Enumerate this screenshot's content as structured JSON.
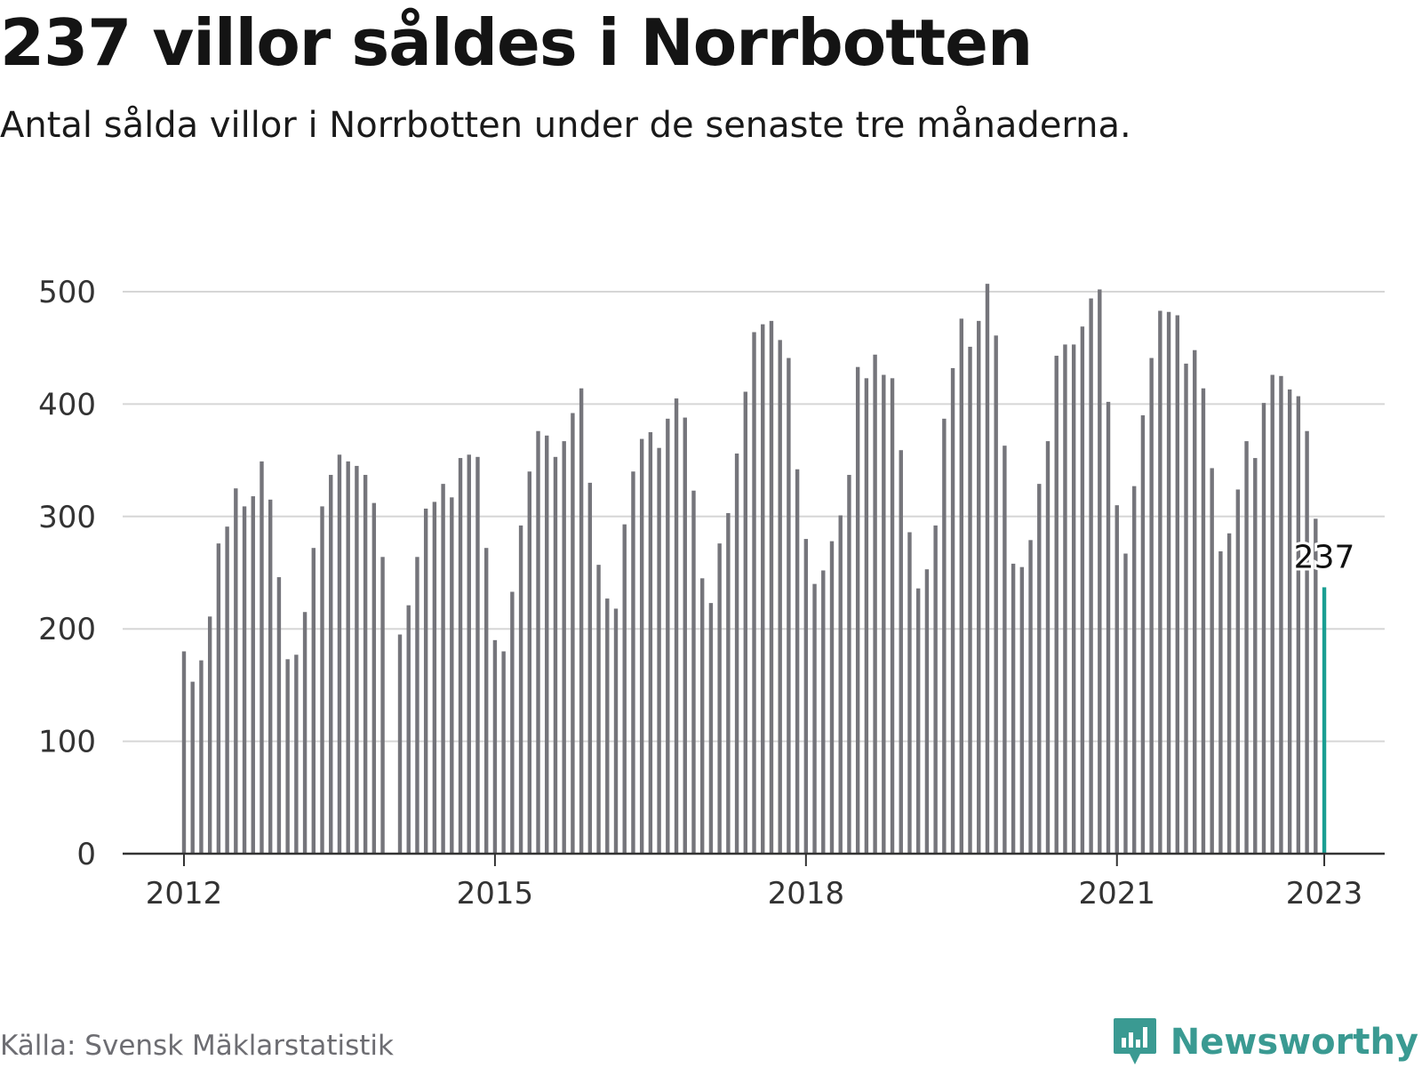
{
  "header": {
    "title": "237 villor såldes i Norrbotten",
    "subtitle": "Antal sålda villor i Norrbotten under de senaste tre månaderna."
  },
  "footer": {
    "source": "Källa: Svensk Mäklarstatistik",
    "brand": "Newsworthy",
    "brand_icon": "bar-chart-speech-bubble-icon"
  },
  "colors": {
    "bar": "#75757b",
    "highlight": "#1a9e92",
    "grid": "#d6d6d6",
    "axis": "#333333",
    "text": "#333333",
    "brand": "#3a9a92"
  },
  "chart_data": {
    "type": "bar",
    "title": "237 villor såldes i Norrbotten",
    "subtitle": "Antal sålda villor i Norrbotten under de senaste tre månaderna.",
    "xlabel": "",
    "ylabel": "",
    "ylim": [
      0,
      500
    ],
    "y_ticks": [
      "0",
      "100",
      "200",
      "300",
      "400",
      "500"
    ],
    "x_ticks": [
      {
        "label": "2012",
        "year": 2012
      },
      {
        "label": "2015",
        "year": 2015
      },
      {
        "label": "2018",
        "year": 2018
      },
      {
        "label": "2021",
        "year": 2021
      },
      {
        "label": "2023",
        "year": 2023
      }
    ],
    "grid": true,
    "start": {
      "year": 2012,
      "month": 1
    },
    "frequency": "monthly, rolling three-month total",
    "values": [
      180,
      153,
      172,
      211,
      276,
      291,
      325,
      309,
      318,
      349,
      315,
      246,
      173,
      177,
      215,
      272,
      309,
      337,
      355,
      349,
      345,
      337,
      312,
      264,
      null,
      195,
      221,
      264,
      307,
      313,
      329,
      317,
      352,
      355,
      353,
      272,
      190,
      180,
      233,
      292,
      340,
      376,
      372,
      353,
      367,
      392,
      414,
      330,
      257,
      227,
      218,
      293,
      340,
      369,
      375,
      361,
      387,
      405,
      388,
      323,
      245,
      223,
      276,
      303,
      356,
      411,
      464,
      471,
      474,
      457,
      441,
      342,
      280,
      240,
      252,
      278,
      301,
      337,
      433,
      423,
      444,
      426,
      423,
      359,
      286,
      236,
      253,
      292,
      387,
      432,
      476,
      451,
      474,
      507,
      461,
      363,
      258,
      255,
      279,
      329,
      367,
      443,
      453,
      453,
      469,
      494,
      502,
      402,
      310,
      267,
      327,
      390,
      441,
      483,
      482,
      479,
      436,
      448,
      414,
      343,
      269,
      285,
      324,
      367,
      352,
      401,
      426,
      425,
      413,
      407,
      376,
      298,
      237
    ],
    "highlight": {
      "index": 132,
      "value": 237,
      "label": "237"
    }
  }
}
